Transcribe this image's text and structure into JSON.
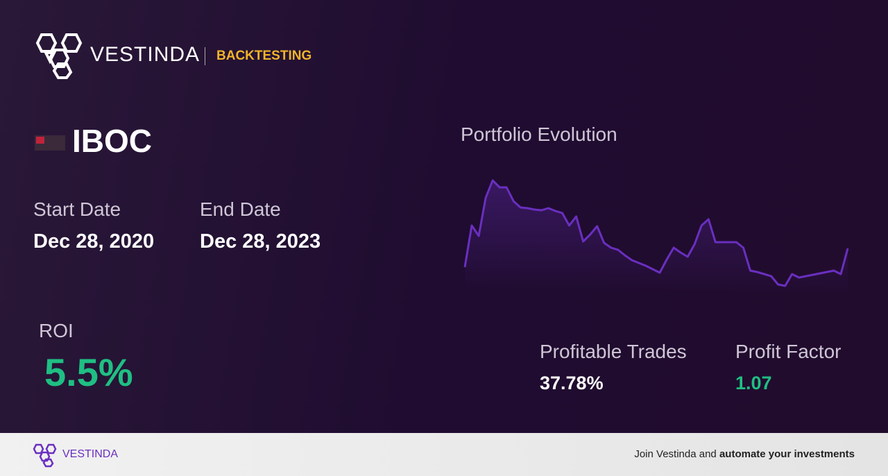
{
  "header": {
    "brand": "VESTINDA",
    "section": "BACKTESTING"
  },
  "ticker": "IBOC",
  "start_date": {
    "label": "Start Date",
    "value": "Dec 28, 2020"
  },
  "end_date": {
    "label": "End Date",
    "value": "Dec 28, 2023"
  },
  "roi": {
    "label": "ROI",
    "value": "5.5%"
  },
  "profitable_trades": {
    "label": "Profitable Trades",
    "value": "37.78%"
  },
  "profit_factor": {
    "label": "Profit Factor",
    "value": "1.07"
  },
  "chart_data": {
    "type": "line",
    "title": "Portfolio Evolution",
    "color": "#6a2fc0",
    "values": [
      35,
      95,
      80,
      135,
      160,
      150,
      150,
      130,
      121,
      120,
      118,
      117,
      120,
      116,
      113,
      95,
      108,
      72,
      82,
      94,
      70,
      63,
      60,
      52,
      45,
      41,
      37,
      32,
      27,
      46,
      63,
      56,
      50,
      68,
      95,
      104,
      71,
      71,
      71,
      71,
      63,
      30,
      28,
      25,
      22,
      10,
      8,
      25,
      20,
      22,
      24,
      26,
      28,
      30,
      25,
      62
    ]
  },
  "footer": {
    "brand": "VESTINDA",
    "cta_prefix": "Join Vestinda and",
    "cta_bold": "automate your investments"
  }
}
